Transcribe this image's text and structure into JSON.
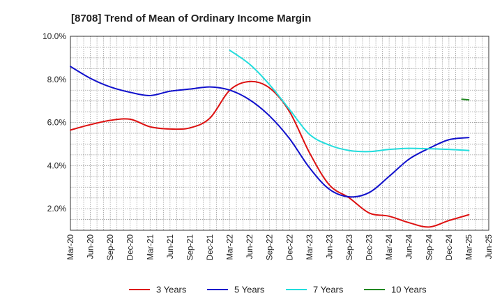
{
  "chart_data": {
    "type": "line",
    "title": "[8708]  Trend of Mean of Ordinary Income Margin",
    "xlabel": "",
    "ylabel": "",
    "ylim": [
      1.0,
      10.0
    ],
    "yticks": [
      2.0,
      4.0,
      6.0,
      8.0,
      10.0
    ],
    "ytick_labels": [
      "2.0%",
      "4.0%",
      "6.0%",
      "8.0%",
      "10.0%"
    ],
    "x_categories": [
      "Mar-20",
      "Jun-20",
      "Sep-20",
      "Dec-20",
      "Mar-21",
      "Jun-21",
      "Sep-21",
      "Dec-21",
      "Mar-22",
      "Jun-22",
      "Sep-22",
      "Dec-22",
      "Mar-23",
      "Jun-23",
      "Sep-23",
      "Dec-23",
      "Mar-24",
      "Jun-24",
      "Sep-24",
      "Dec-24",
      "Mar-25",
      "Jun-25"
    ],
    "grid": true,
    "legend_position": "bottom",
    "series": [
      {
        "name": "3 Years",
        "color": "#dd1111",
        "values": [
          5.65,
          5.9,
          6.1,
          6.15,
          5.8,
          5.7,
          5.75,
          6.2,
          7.5,
          7.9,
          7.6,
          6.5,
          4.6,
          3.1,
          2.5,
          1.8,
          1.65,
          1.35,
          1.15,
          1.45,
          1.72,
          null
        ]
      },
      {
        "name": "5 Years",
        "color": "#1111cc",
        "values": [
          8.6,
          8.05,
          7.65,
          7.4,
          7.25,
          7.45,
          7.55,
          7.65,
          7.5,
          7.05,
          6.3,
          5.25,
          3.9,
          2.9,
          2.55,
          2.75,
          3.5,
          4.3,
          4.8,
          5.2,
          5.3,
          null
        ]
      },
      {
        "name": "7 Years",
        "color": "#22dddd",
        "values": [
          null,
          null,
          null,
          null,
          null,
          null,
          null,
          null,
          9.35,
          8.7,
          7.75,
          6.6,
          5.45,
          4.95,
          4.7,
          4.65,
          4.75,
          4.8,
          4.78,
          4.75,
          4.7,
          null
        ]
      },
      {
        "name": "10 Years",
        "color": "#228822",
        "values": [
          null,
          null,
          null,
          null,
          null,
          null,
          null,
          null,
          null,
          null,
          null,
          null,
          null,
          null,
          null,
          null,
          null,
          null,
          null,
          null,
          7.05,
          null
        ],
        "segment_start": 7.08,
        "segment_start_offset": -0.35
      }
    ]
  }
}
